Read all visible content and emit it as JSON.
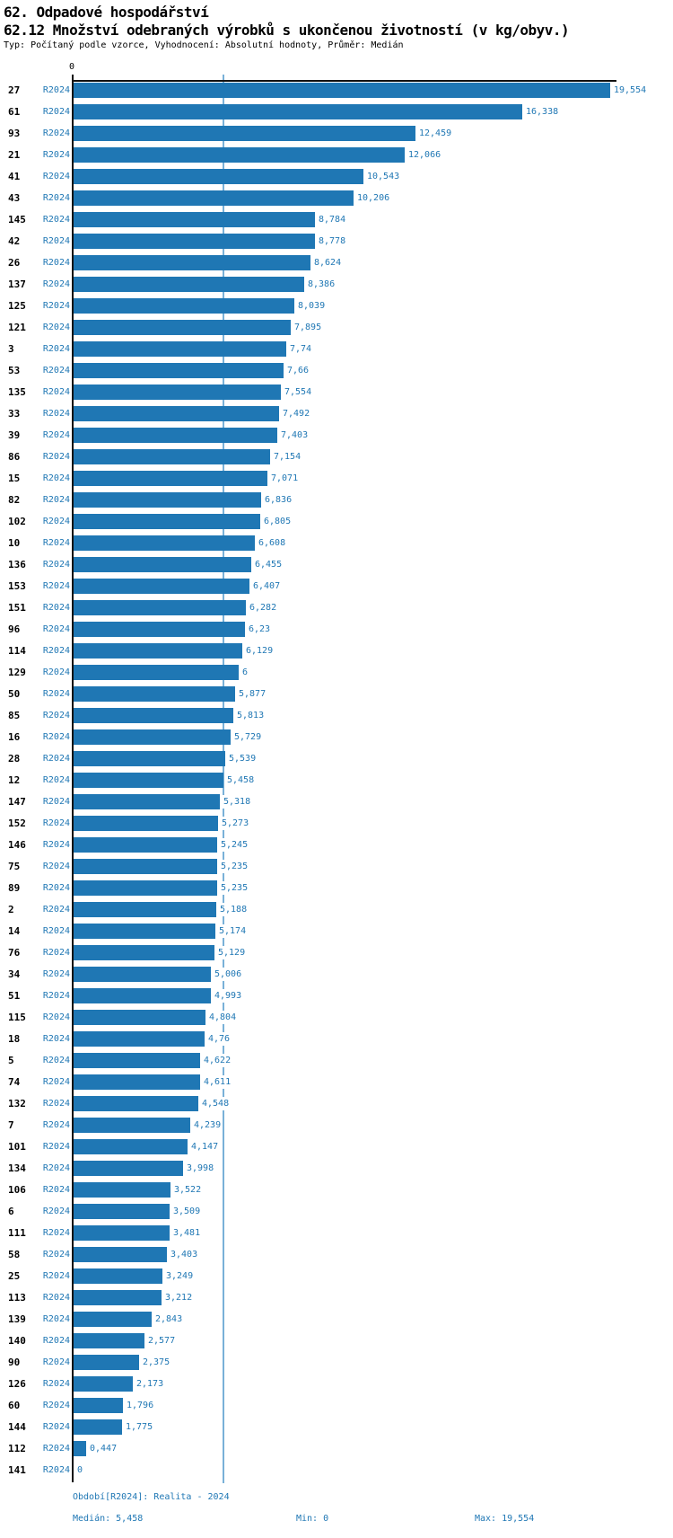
{
  "header": {
    "title1": "62. Odpadové hospodářství",
    "title2": "62.12 Množství odebraných výrobků s ukončenou životností (v kg/obyv.)",
    "subtitle": "Typ: Počítaný podle vzorce, Vyhodnocení: Absolutní hodnoty, Průměr: Medián"
  },
  "axis": {
    "zero_label": "0"
  },
  "footer": {
    "period": "Období[R2024]: Realita - 2024",
    "median": "Medián: 5,458",
    "min": "Min: 0",
    "max": "Max: 19,554"
  },
  "colors": {
    "bar": "#1f77b4",
    "median_line": "#79b1d8",
    "blue_text": "#1f77b4",
    "axis": "#111111"
  },
  "chart_data": {
    "type": "bar",
    "orientation": "horizontal",
    "title": "62.12 Množství odebraných výrobků s ukončenou životností (v kg/obyv.)",
    "xlabel": "kg/obyv.",
    "ylabel": "",
    "xlim": [
      0,
      19.554
    ],
    "x_ticks_shown": [
      "0"
    ],
    "grid": false,
    "legend_position": "none",
    "series_label": "R2024",
    "categories": [
      "27",
      "61",
      "93",
      "21",
      "41",
      "43",
      "145",
      "42",
      "26",
      "137",
      "125",
      "121",
      "3",
      "53",
      "135",
      "33",
      "39",
      "86",
      "15",
      "82",
      "102",
      "10",
      "136",
      "153",
      "151",
      "96",
      "114",
      "129",
      "50",
      "85",
      "16",
      "28",
      "12",
      "147",
      "152",
      "146",
      "75",
      "89",
      "2",
      "14",
      "76",
      "34",
      "51",
      "115",
      "18",
      "5",
      "74",
      "132",
      "7",
      "101",
      "134",
      "106",
      "6",
      "111",
      "58",
      "25",
      "113",
      "139",
      "140",
      "90",
      "126",
      "60",
      "144",
      "112",
      "141"
    ],
    "series": [
      {
        "name": "R2024",
        "values": [
          19.554,
          16.338,
          12.459,
          12.066,
          10.543,
          10.206,
          8.784,
          8.778,
          8.624,
          8.386,
          8.039,
          7.895,
          7.74,
          7.66,
          7.554,
          7.492,
          7.403,
          7.154,
          7.071,
          6.836,
          6.805,
          6.608,
          6.455,
          6.407,
          6.282,
          6.23,
          6.129,
          6.0,
          5.877,
          5.813,
          5.729,
          5.539,
          5.458,
          5.318,
          5.273,
          5.245,
          5.235,
          5.235,
          5.188,
          5.174,
          5.129,
          5.006,
          4.993,
          4.804,
          4.76,
          4.622,
          4.611,
          4.548,
          4.239,
          4.147,
          3.998,
          3.522,
          3.509,
          3.481,
          3.403,
          3.249,
          3.212,
          2.843,
          2.577,
          2.375,
          2.173,
          1.796,
          1.775,
          0.447,
          0
        ]
      }
    ],
    "value_labels": [
      "19,554",
      "16,338",
      "12,459",
      "12,066",
      "10,543",
      "10,206",
      "8,784",
      "8,778",
      "8,624",
      "8,386",
      "8,039",
      "7,895",
      "7,74",
      "7,66",
      "7,554",
      "7,492",
      "7,403",
      "7,154",
      "7,071",
      "6,836",
      "6,805",
      "6,608",
      "6,455",
      "6,407",
      "6,282",
      "6,23",
      "6,129",
      "6",
      "5,877",
      "5,813",
      "5,729",
      "5,539",
      "5,458",
      "5,318",
      "5,273",
      "5,245",
      "5,235",
      "5,235",
      "5,188",
      "5,174",
      "5,129",
      "5,006",
      "4,993",
      "4,804",
      "4,76",
      "4,622",
      "4,611",
      "4,548",
      "4,239",
      "4,147",
      "3,998",
      "3,522",
      "3,509",
      "3,481",
      "3,403",
      "3,249",
      "3,212",
      "2,843",
      "2,577",
      "2,375",
      "2,173",
      "1,796",
      "1,775",
      "0,447",
      "0"
    ],
    "median": 5.458,
    "min": 0,
    "max": 19.554
  }
}
